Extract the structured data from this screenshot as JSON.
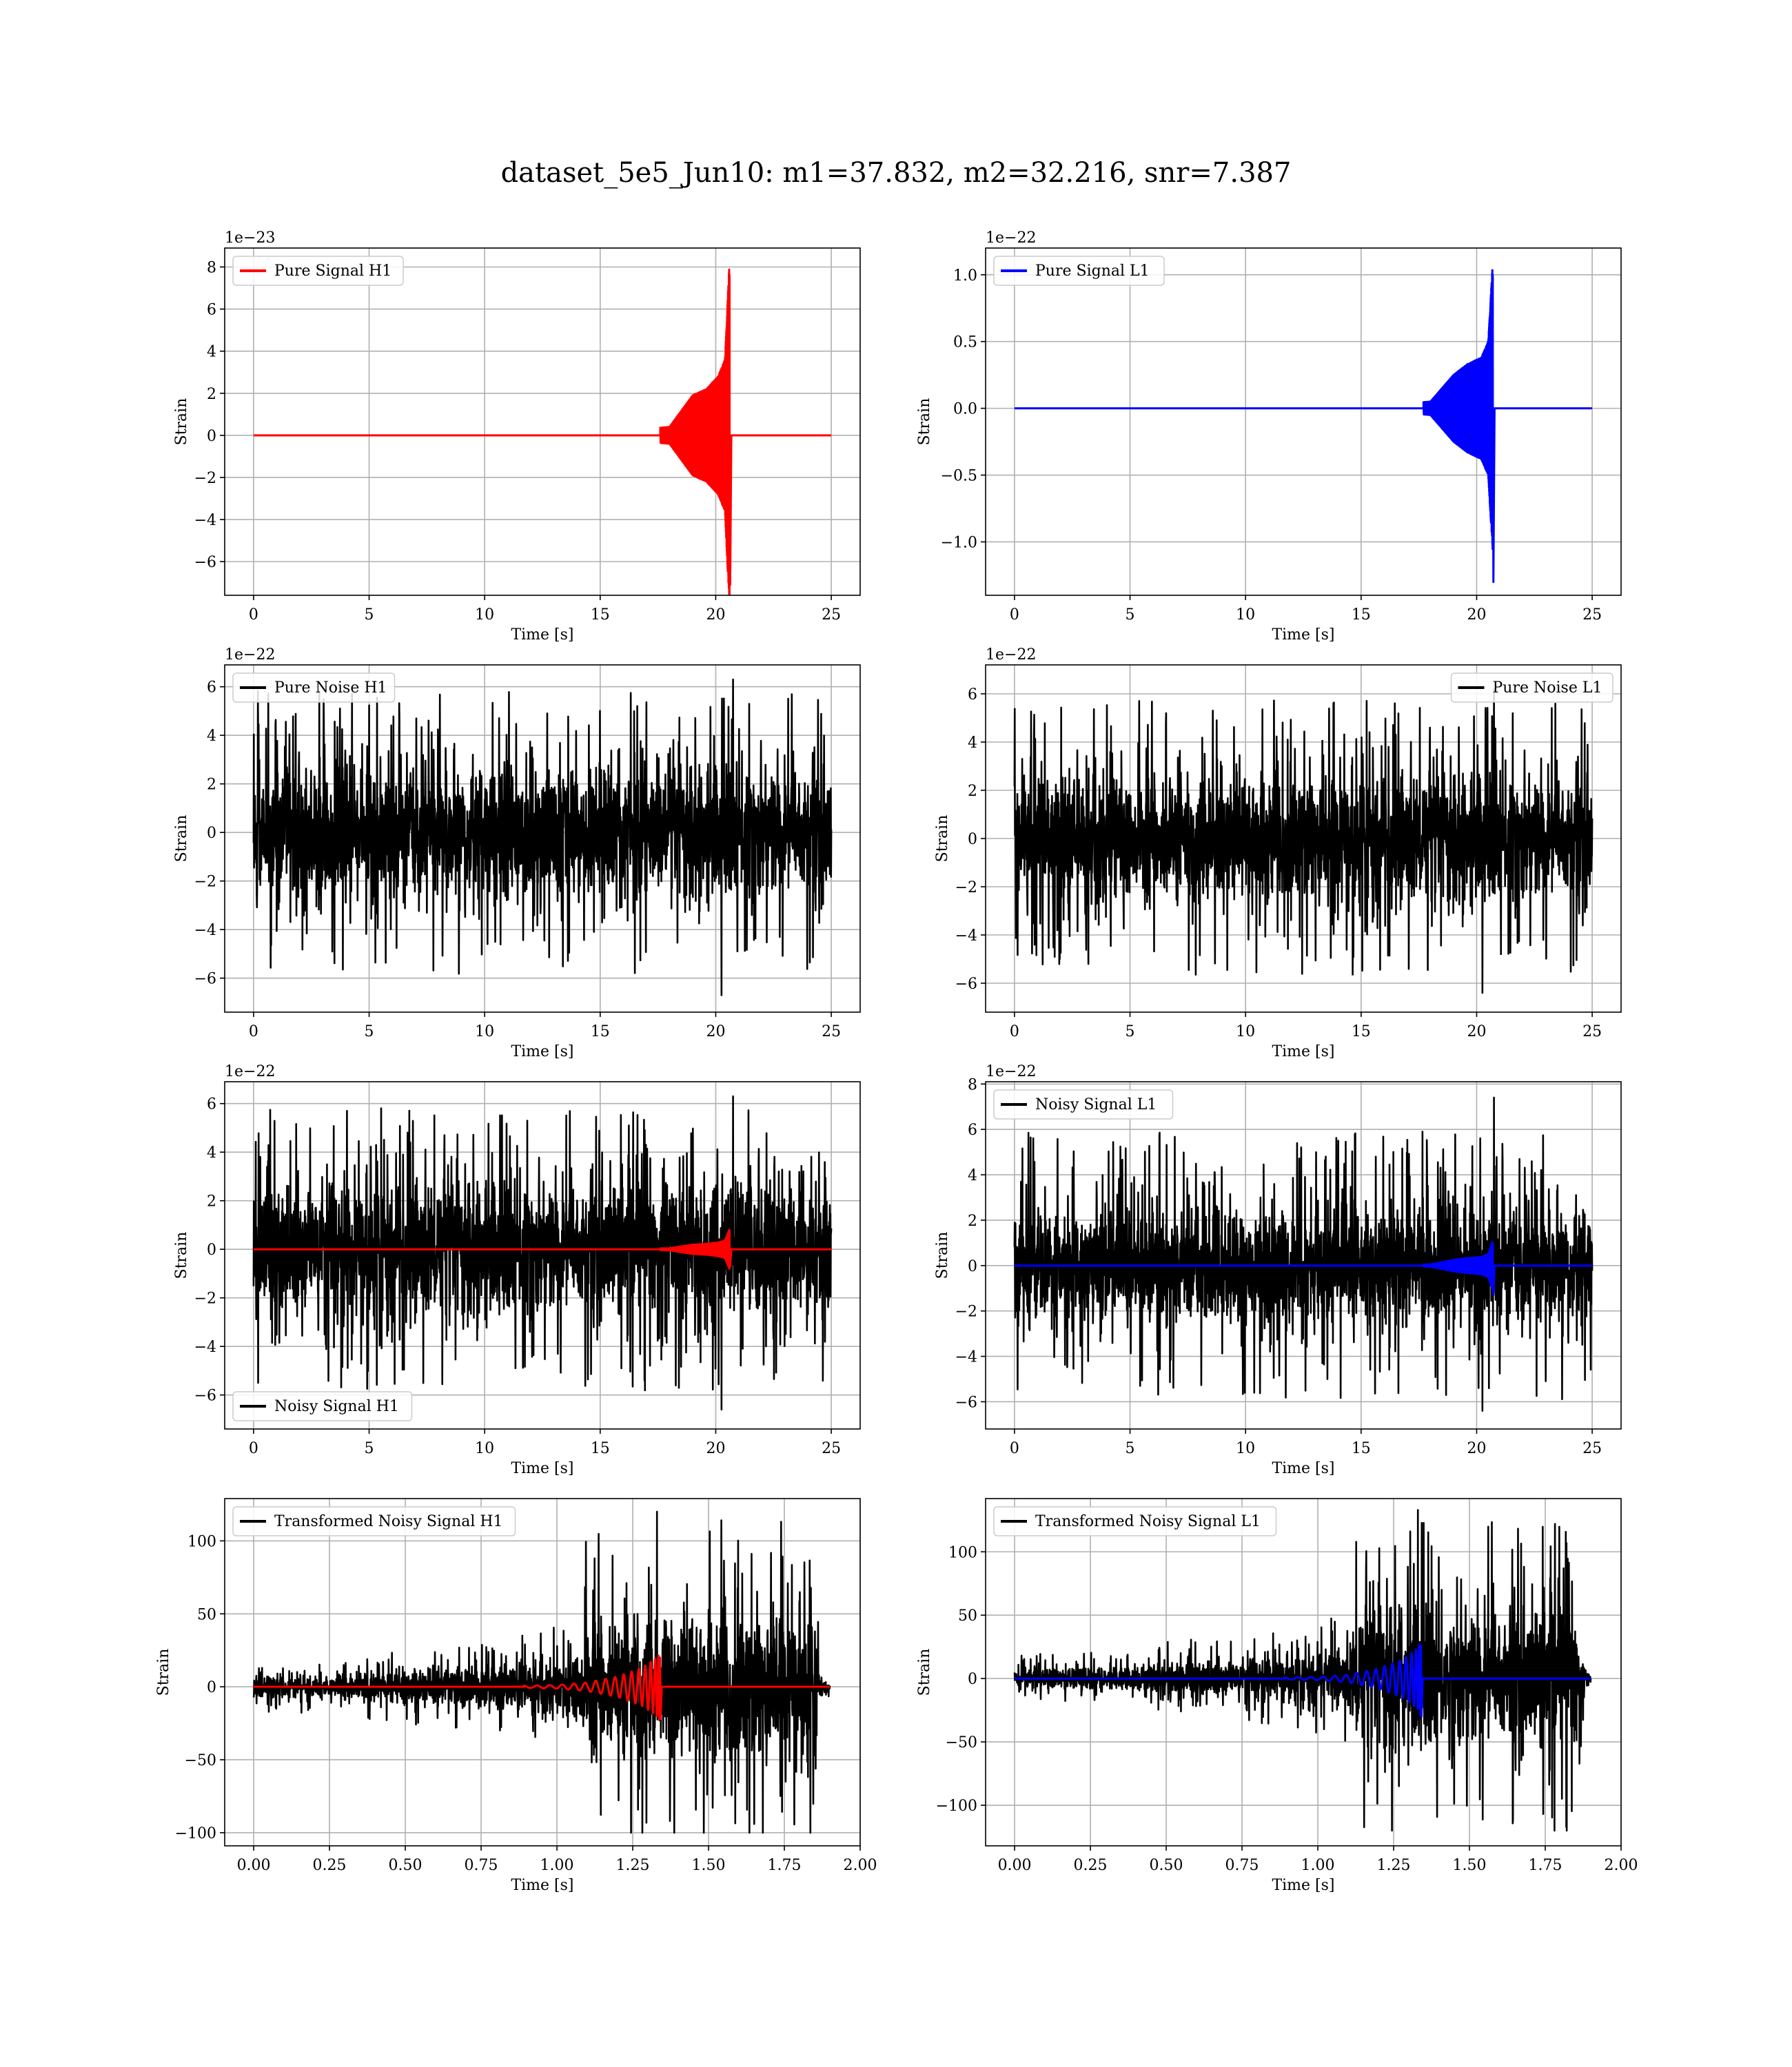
{
  "figure": {
    "title": "dataset_5e5_Jun10: m1=37.832, m2=32.216, snr=7.387"
  },
  "chart_data": [
    {
      "id": "pure-signal-h1",
      "type": "line",
      "title": "",
      "xlabel": "Time [s]",
      "ylabel": "Strain",
      "offset_text": "1e−23",
      "xlim": [
        -1.25,
        26.25
      ],
      "ylim": [
        -7.6,
        8.9
      ],
      "xticks": [
        0,
        5,
        10,
        15,
        20,
        25
      ],
      "xtick_labels": [
        "0",
        "5",
        "10",
        "15",
        "20",
        "25"
      ],
      "yticks": [
        -6,
        -4,
        -2,
        0,
        2,
        4,
        6,
        8
      ],
      "ytick_labels": [
        "−6",
        "−4",
        "−2",
        "0",
        "2",
        "4",
        "6",
        "8"
      ],
      "grid": true,
      "legend_position": "upper-left",
      "series": [
        {
          "name": "Pure Signal H1",
          "kind": "chirp",
          "color": "#ff0000",
          "x_start": 0,
          "x_end": 25,
          "t_merger": 20.6,
          "amp_envelope": [
            [
              0,
              0.02
            ],
            [
              15,
              0.1
            ],
            [
              18.0,
              0.4
            ],
            [
              19.0,
              1.9
            ],
            [
              19.6,
              2.2
            ],
            [
              20.1,
              2.8
            ],
            [
              20.4,
              3.6
            ],
            [
              20.6,
              8.4
            ]
          ],
          "neg_peak": -7.1,
          "amp_end": 0
        }
      ]
    },
    {
      "id": "pure-signal-l1",
      "type": "line",
      "title": "",
      "xlabel": "Time [s]",
      "ylabel": "Strain",
      "offset_text": "1e−22",
      "xlim": [
        -1.25,
        26.25
      ],
      "ylim": [
        -1.4,
        1.2
      ],
      "xticks": [
        0,
        5,
        10,
        15,
        20,
        25
      ],
      "xtick_labels": [
        "0",
        "5",
        "10",
        "15",
        "20",
        "25"
      ],
      "yticks": [
        -1.0,
        -0.5,
        0.0,
        0.5,
        1.0
      ],
      "ytick_labels": [
        "−1.0",
        "−0.5",
        "0.0",
        "0.5",
        "1.0"
      ],
      "grid": true,
      "legend_position": "upper-left",
      "series": [
        {
          "name": "Pure Signal L1",
          "kind": "chirp",
          "color": "#0000ff",
          "x_start": 0,
          "x_end": 25,
          "t_merger": 20.7,
          "amp_envelope": [
            [
              0,
              0.002
            ],
            [
              15,
              0.01
            ],
            [
              18.0,
              0.05
            ],
            [
              19.0,
              0.25
            ],
            [
              19.6,
              0.33
            ],
            [
              20.2,
              0.38
            ],
            [
              20.5,
              0.5
            ],
            [
              20.7,
              1.1
            ]
          ],
          "neg_peak": -1.3,
          "amp_end": 0
        }
      ]
    },
    {
      "id": "pure-noise-h1",
      "type": "line",
      "title": "",
      "xlabel": "Time [s]",
      "ylabel": "Strain",
      "offset_text": "1e−22",
      "xlim": [
        -1.25,
        26.25
      ],
      "ylim": [
        -7.4,
        6.9
      ],
      "xticks": [
        0,
        5,
        10,
        15,
        20,
        25
      ],
      "xtick_labels": [
        "0",
        "5",
        "10",
        "15",
        "20",
        "25"
      ],
      "yticks": [
        -6,
        -4,
        -2,
        0,
        2,
        4,
        6
      ],
      "ytick_labels": [
        "−6",
        "−4",
        "−2",
        "0",
        "2",
        "4",
        "6"
      ],
      "grid": true,
      "legend_position": "upper-left",
      "series": [
        {
          "name": "Pure Noise H1",
          "kind": "noise",
          "color": "#000000",
          "x_start": 0,
          "x_end": 25,
          "core": 3.2,
          "max": 6.3,
          "min": -6.7
        }
      ]
    },
    {
      "id": "pure-noise-l1",
      "type": "line",
      "title": "",
      "xlabel": "Time [s]",
      "ylabel": "Strain",
      "offset_text": "1e−22",
      "xlim": [
        -1.25,
        26.25
      ],
      "ylim": [
        -7.2,
        7.2
      ],
      "xticks": [
        0,
        5,
        10,
        15,
        20,
        25
      ],
      "xtick_labels": [
        "0",
        "5",
        "10",
        "15",
        "20",
        "25"
      ],
      "yticks": [
        -6,
        -4,
        -2,
        0,
        2,
        4,
        6
      ],
      "ytick_labels": [
        "−6",
        "−4",
        "−2",
        "0",
        "2",
        "4",
        "6"
      ],
      "grid": true,
      "legend_position": "upper-right",
      "series": [
        {
          "name": "Pure Noise L1",
          "kind": "noise",
          "color": "#000000",
          "x_start": 0,
          "x_end": 25,
          "core": 3.1,
          "max": 6.2,
          "min": -6.4
        }
      ]
    },
    {
      "id": "noisy-signal-h1",
      "type": "line",
      "title": "",
      "xlabel": "Time [s]",
      "ylabel": "Strain",
      "offset_text": "1e−22",
      "xlim": [
        -1.25,
        26.25
      ],
      "ylim": [
        -7.4,
        6.9
      ],
      "xticks": [
        0,
        5,
        10,
        15,
        20,
        25
      ],
      "xtick_labels": [
        "0",
        "5",
        "10",
        "15",
        "20",
        "25"
      ],
      "yticks": [
        -6,
        -4,
        -2,
        0,
        2,
        4,
        6
      ],
      "ytick_labels": [
        "−6",
        "−4",
        "−2",
        "0",
        "2",
        "4",
        "6"
      ],
      "grid": true,
      "legend_position": "lower-left",
      "series": [
        {
          "name": "Noisy Signal H1",
          "kind": "noise",
          "color": "#000000",
          "x_start": 0,
          "x_end": 25,
          "core": 3.2,
          "max": 6.3,
          "min": -6.6
        },
        {
          "kind": "chirp",
          "color": "#ff0000",
          "x_start": 0,
          "x_end": 25,
          "t_merger": 20.6,
          "amp_envelope": [
            [
              0,
              0.002
            ],
            [
              15,
              0.01
            ],
            [
              18.0,
              0.04
            ],
            [
              19.0,
              0.19
            ],
            [
              19.6,
              0.22
            ],
            [
              20.1,
              0.28
            ],
            [
              20.4,
              0.36
            ],
            [
              20.6,
              0.84
            ]
          ],
          "neg_peak": -0.71,
          "amp_end": 0
        }
      ]
    },
    {
      "id": "noisy-signal-l1",
      "type": "line",
      "title": "",
      "xlabel": "Time [s]",
      "ylabel": "Strain",
      "offset_text": "1e−22",
      "xlim": [
        -1.25,
        26.25
      ],
      "ylim": [
        -7.2,
        8.1
      ],
      "xticks": [
        0,
        5,
        10,
        15,
        20,
        25
      ],
      "xtick_labels": [
        "0",
        "5",
        "10",
        "15",
        "20",
        "25"
      ],
      "yticks": [
        -6,
        -4,
        -2,
        0,
        2,
        4,
        6,
        8
      ],
      "ytick_labels": [
        "−6",
        "−4",
        "−2",
        "0",
        "2",
        "4",
        "6",
        "8"
      ],
      "grid": true,
      "legend_position": "upper-left",
      "series": [
        {
          "name": "Noisy Signal L1",
          "kind": "noise",
          "color": "#000000",
          "x_start": 0,
          "x_end": 25,
          "core": 3.1,
          "max": 7.4,
          "min": -6.4
        },
        {
          "kind": "chirp",
          "color": "#0000ff",
          "x_start": 0,
          "x_end": 25,
          "t_merger": 20.7,
          "amp_envelope": [
            [
              0,
              0.002
            ],
            [
              15,
              0.01
            ],
            [
              18.0,
              0.05
            ],
            [
              19.0,
              0.25
            ],
            [
              19.6,
              0.33
            ],
            [
              20.2,
              0.38
            ],
            [
              20.5,
              0.5
            ],
            [
              20.7,
              1.1
            ]
          ],
          "neg_peak": -1.3,
          "amp_end": 0
        }
      ]
    },
    {
      "id": "transformed-noisy-signal-h1",
      "type": "line",
      "title": "",
      "xlabel": "Time [s]",
      "ylabel": "Strain",
      "offset_text": "",
      "xlim": [
        -0.0956,
        2.0
      ],
      "ylim": [
        -109,
        129
      ],
      "xticks": [
        0.0,
        0.25,
        0.5,
        0.75,
        1.0,
        1.25,
        1.5,
        1.75,
        2.0
      ],
      "xtick_labels": [
        "0.00",
        "0.25",
        "0.50",
        "0.75",
        "1.00",
        "1.25",
        "1.50",
        "1.75",
        "2.00"
      ],
      "yticks": [
        -100,
        -50,
        0,
        50,
        100
      ],
      "ytick_labels": [
        "−100",
        "−50",
        "0",
        "50",
        "100"
      ],
      "grid": true,
      "legend_position": "upper-left",
      "series": [
        {
          "name": "Transformed Noisy Signal H1",
          "kind": "transformed_noise",
          "color": "#000000",
          "x_start": 0,
          "x_end": 1.9,
          "envelope": [
            [
              0,
              8
            ],
            [
              0.3,
              9
            ],
            [
              0.5,
              13
            ],
            [
              0.9,
              17
            ],
            [
              1.05,
              22
            ],
            [
              1.1,
              50
            ],
            [
              1.3,
              52
            ],
            [
              1.6,
              55
            ],
            [
              1.85,
              55
            ],
            [
              1.87,
              5
            ],
            [
              1.9,
              3
            ]
          ],
          "max": 120,
          "min": -100
        },
        {
          "kind": "chirp",
          "color": "#ff0000",
          "x_start": 0,
          "x_end": 1.9,
          "t_merger": 1.34,
          "cycles": 16,
          "amp_envelope": [
            [
              0,
              0.05
            ],
            [
              0.8,
              0.3
            ],
            [
              1.0,
              1.2
            ],
            [
              1.1,
              3
            ],
            [
              1.2,
              7
            ],
            [
              1.28,
              13
            ],
            [
              1.33,
              20
            ],
            [
              1.34,
              23
            ]
          ],
          "neg_peak": -22,
          "amp_end": 0
        }
      ]
    },
    {
      "id": "transformed-noisy-signal-l1",
      "type": "line",
      "title": "",
      "xlabel": "Time [s]",
      "ylabel": "Strain",
      "offset_text": "",
      "xlim": [
        -0.0956,
        2.0
      ],
      "ylim": [
        -132,
        142
      ],
      "xticks": [
        0.0,
        0.25,
        0.5,
        0.75,
        1.0,
        1.25,
        1.5,
        1.75,
        2.0
      ],
      "xtick_labels": [
        "0.00",
        "0.25",
        "0.50",
        "0.75",
        "1.00",
        "1.25",
        "1.50",
        "1.75",
        "2.00"
      ],
      "yticks": [
        -100,
        -50,
        0,
        50,
        100
      ],
      "ytick_labels": [
        "−100",
        "−50",
        "0",
        "50",
        "100"
      ],
      "grid": true,
      "legend_position": "upper-left",
      "series": [
        {
          "name": "Transformed Noisy Signal L1",
          "kind": "transformed_noise",
          "color": "#000000",
          "x_start": 0,
          "x_end": 1.9,
          "envelope": [
            [
              0,
              9
            ],
            [
              0.35,
              10
            ],
            [
              0.5,
              14
            ],
            [
              0.9,
              18
            ],
            [
              1.1,
              25
            ],
            [
              1.13,
              58
            ],
            [
              1.3,
              62
            ],
            [
              1.6,
              60
            ],
            [
              1.86,
              60
            ],
            [
              1.88,
              5
            ],
            [
              1.9,
              3
            ]
          ],
          "max": 133,
          "min": -120
        },
        {
          "kind": "chirp",
          "color": "#0000ff",
          "x_start": 0,
          "x_end": 1.9,
          "t_merger": 1.34,
          "cycles": 16,
          "amp_envelope": [
            [
              0,
              0.05
            ],
            [
              0.8,
              0.3
            ],
            [
              1.0,
              1.2
            ],
            [
              1.1,
              3
            ],
            [
              1.2,
              8
            ],
            [
              1.28,
              15
            ],
            [
              1.33,
              24
            ],
            [
              1.34,
              30
            ]
          ],
          "neg_peak": -30,
          "amp_end": 0
        }
      ]
    }
  ]
}
